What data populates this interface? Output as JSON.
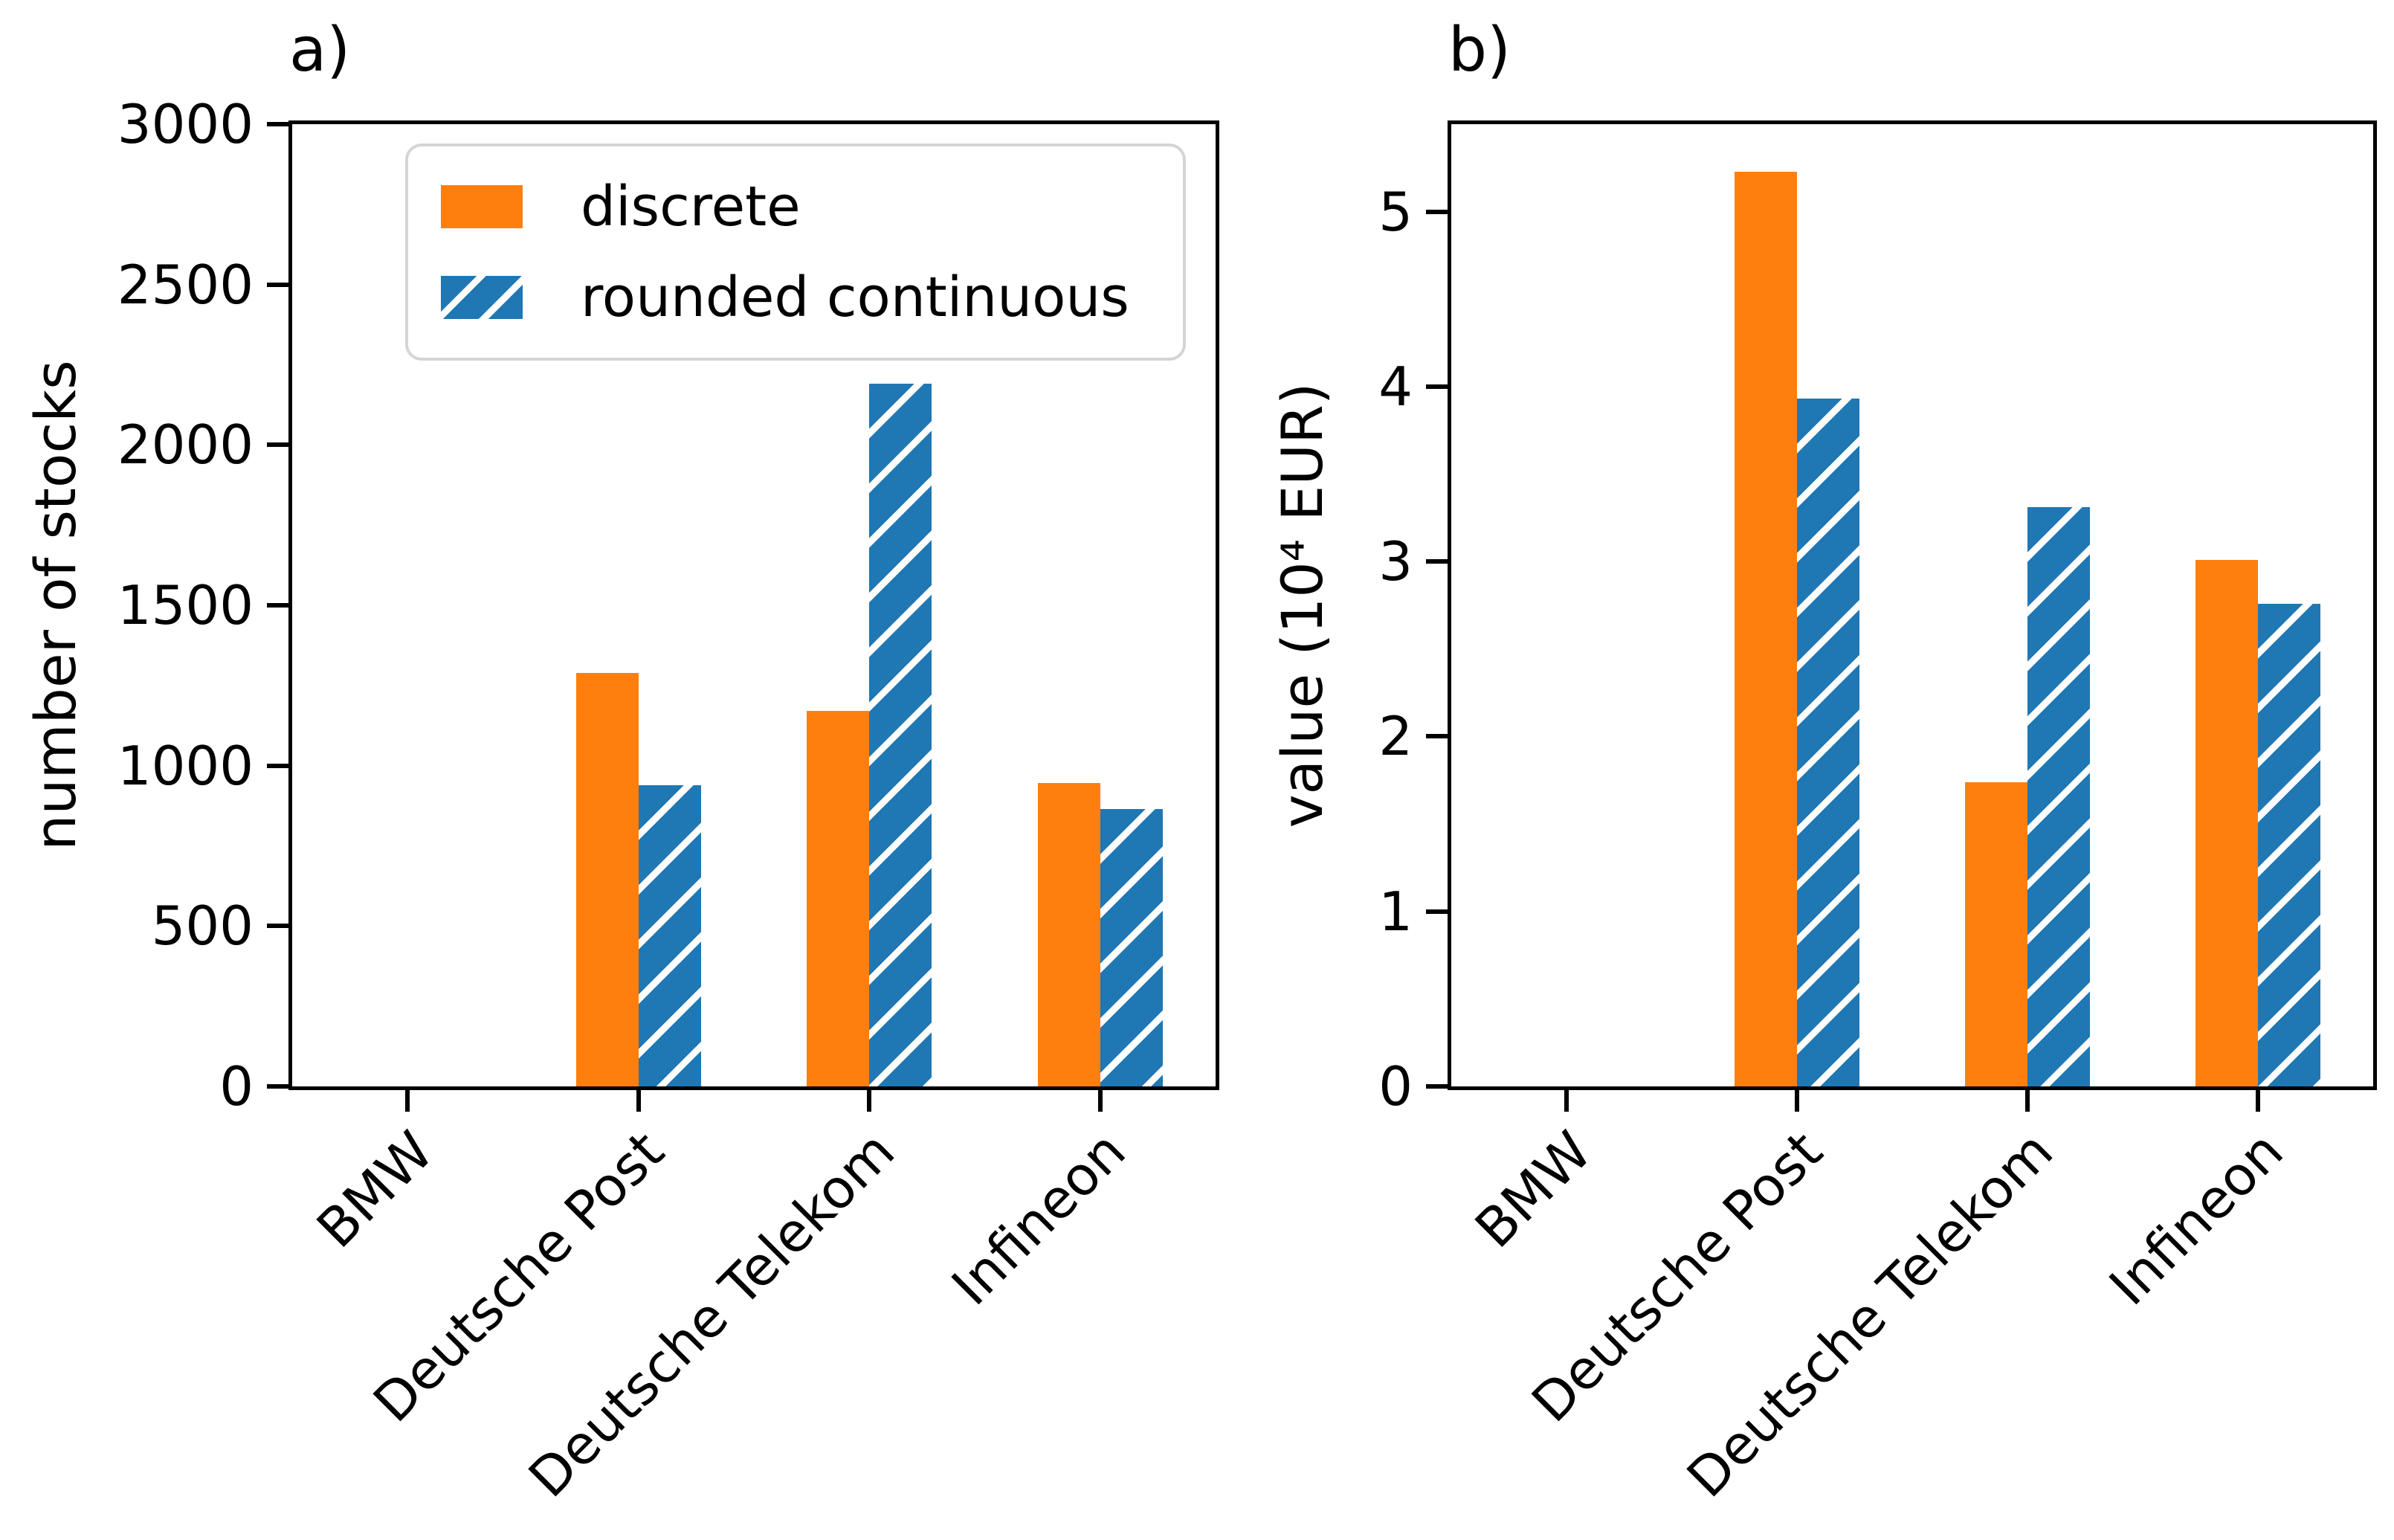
{
  "figure": {
    "background": "#ffffff",
    "text_color": "#000000",
    "spine_color": "#000000"
  },
  "legend": {
    "location": "upper left of panel a",
    "border_color": "#d4d4d4",
    "items": [
      {
        "label": "discrete",
        "color": "#ff7f0e",
        "hatch": false
      },
      {
        "label": "rounded continuous",
        "color": "#1f77b4",
        "hatch": true
      }
    ]
  },
  "chart_data": [
    {
      "type": "bar",
      "panel": "a",
      "title": "a)",
      "xlabel": "",
      "ylabel": "number of stocks",
      "categories": [
        "BMW",
        "Deutsche Post",
        "Deutsche Telekom",
        "Infineon"
      ],
      "series": [
        {
          "name": "discrete",
          "color": "#ff7f0e",
          "hatch": false,
          "values": [
            0,
            1290,
            1170,
            945
          ]
        },
        {
          "name": "rounded continuous",
          "color": "#1f77b4",
          "hatch": true,
          "values": [
            0,
            940,
            2190,
            865
          ]
        }
      ],
      "ylim": [
        0,
        3000
      ],
      "yticks": [
        0,
        500,
        1000,
        1500,
        2000,
        2500,
        3000
      ],
      "xtick_rotation": 45,
      "grid": false,
      "legend_visible": true
    },
    {
      "type": "bar",
      "panel": "b",
      "title": "b)",
      "xlabel": "",
      "ylabel": "value (10⁴ EUR)",
      "categories": [
        "BMW",
        "Deutsche Post",
        "Deutsche Telekom",
        "Infineon"
      ],
      "series": [
        {
          "name": "discrete",
          "color": "#ff7f0e",
          "hatch": false,
          "values": [
            0,
            5.23,
            1.74,
            3.01
          ]
        },
        {
          "name": "rounded continuous",
          "color": "#1f77b4",
          "hatch": true,
          "values": [
            0,
            3.93,
            3.31,
            2.76
          ]
        }
      ],
      "ylim": [
        0,
        5.5
      ],
      "yticks": [
        0,
        1,
        2,
        3,
        4,
        5
      ],
      "xtick_rotation": 45,
      "grid": false,
      "legend_visible": false
    }
  ]
}
